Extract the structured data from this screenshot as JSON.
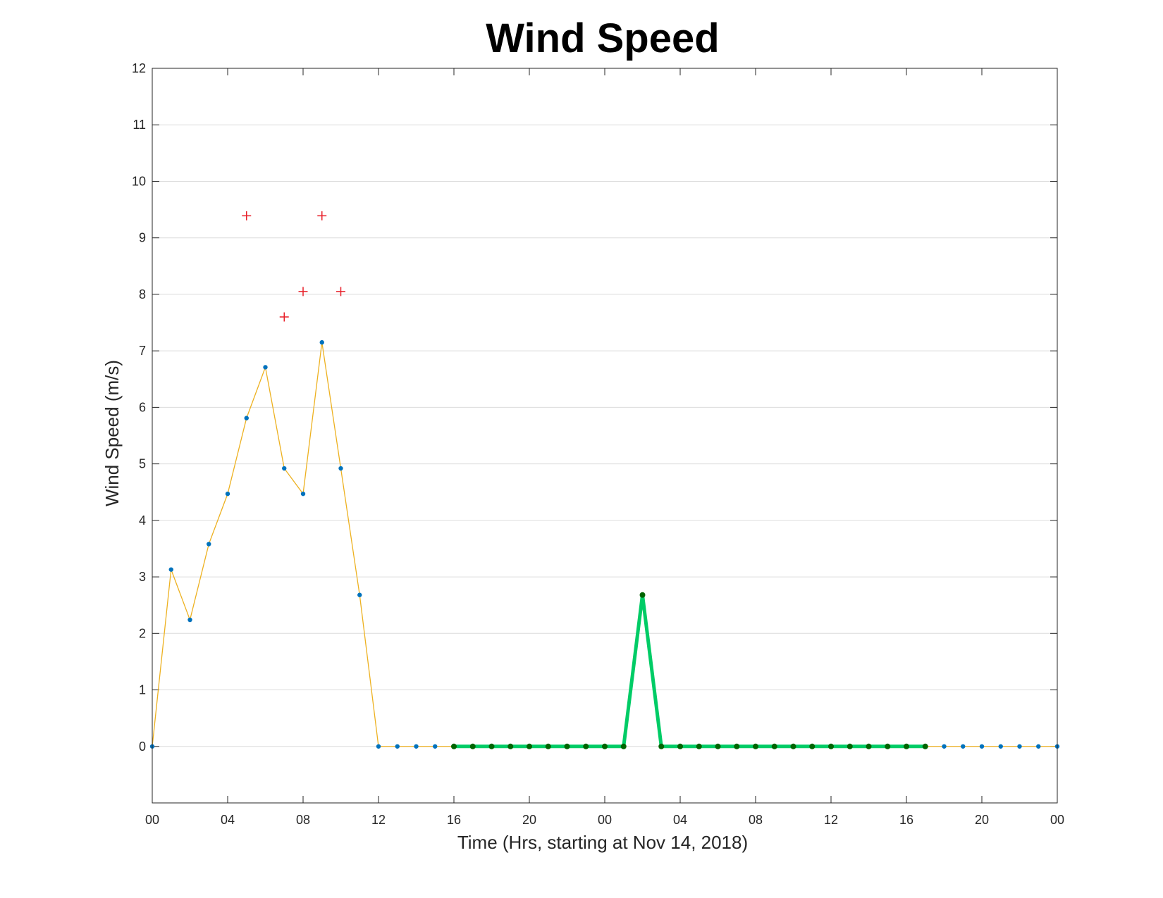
{
  "chart_data": {
    "type": "line",
    "title": "Wind Speed",
    "xlabel": "Time (Hrs, starting at Nov 14, 2018)",
    "ylabel": "Wind Speed (m/s)",
    "x_unit": "hour",
    "xlim": [
      0,
      48
    ],
    "ylim": [
      -1,
      12
    ],
    "yticks": [
      0,
      1,
      2,
      3,
      4,
      5,
      6,
      7,
      8,
      9,
      10,
      11,
      12
    ],
    "xticks": [
      0,
      4,
      8,
      12,
      16,
      20,
      24,
      28,
      32,
      36,
      40,
      44,
      48
    ],
    "xtick_labels": [
      "00",
      "04",
      "08",
      "12",
      "16",
      "20",
      "00",
      "04",
      "08",
      "12",
      "16",
      "20",
      "00"
    ],
    "grid": "horizontal",
    "legend": "none",
    "colors": {
      "main_line": "#EDB120",
      "main_marker": "#0072BD",
      "outlier": "#E8202A",
      "highlight_line": "#00CC66",
      "highlight_marker": "#006400",
      "grid": "#DCDCDC",
      "axes": "#262626"
    },
    "series": [
      {
        "style": "thin-line-with-dot-markers",
        "x": [
          0,
          1,
          2,
          3,
          4,
          5,
          6,
          7,
          8,
          9,
          10,
          11,
          12,
          13,
          14,
          15,
          16,
          17,
          18,
          19,
          20,
          21,
          22,
          23,
          24,
          25,
          26,
          27,
          28,
          29,
          30,
          31,
          32,
          33,
          34,
          35,
          36,
          37,
          38,
          39,
          40,
          41,
          42,
          43,
          44,
          45,
          46,
          47,
          48
        ],
        "y": [
          0,
          3.13,
          2.24,
          3.58,
          4.47,
          5.81,
          6.71,
          4.92,
          4.47,
          7.15,
          4.92,
          2.68,
          0,
          0,
          0,
          0,
          0,
          0,
          0,
          0,
          0,
          0,
          0,
          0,
          0,
          0,
          2.68,
          0,
          0,
          0,
          0,
          0,
          0,
          0,
          0,
          0,
          0,
          0,
          0,
          0,
          0,
          0,
          0,
          0,
          0,
          0,
          0,
          0,
          0
        ]
      },
      {
        "style": "thick-line-with-dot-markers",
        "x": [
          16,
          17,
          18,
          19,
          20,
          21,
          22,
          23,
          24,
          25,
          26,
          27,
          28,
          29,
          30,
          31,
          32,
          33,
          34,
          35,
          36,
          37,
          38,
          39,
          40,
          41
        ],
        "y": [
          0,
          0,
          0,
          0,
          0,
          0,
          0,
          0,
          0,
          0,
          2.68,
          0,
          0,
          0,
          0,
          0,
          0,
          0,
          0,
          0,
          0,
          0,
          0,
          0,
          0,
          0
        ]
      },
      {
        "style": "plus-markers",
        "x": [
          5,
          7,
          8,
          9,
          10
        ],
        "y": [
          9.39,
          7.6,
          8.05,
          9.39,
          8.05
        ]
      }
    ]
  }
}
